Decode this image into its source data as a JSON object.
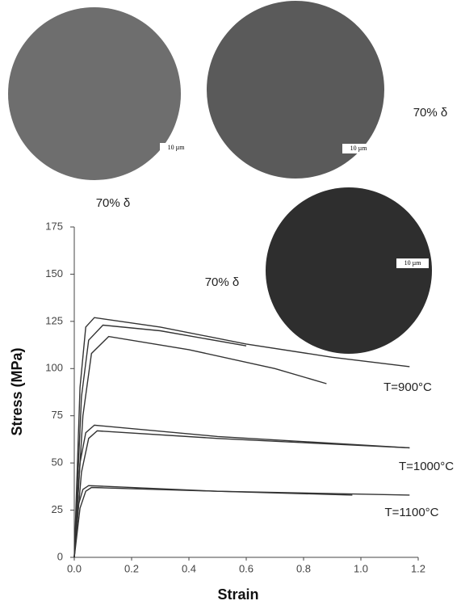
{
  "chart_data": {
    "type": "line",
    "x_label": "Strain",
    "y_label": "Stress (MPa)",
    "xlim": [
      0,
      1.2
    ],
    "ylim": [
      0,
      175
    ],
    "xticks": [
      {
        "value": 0,
        "label": "0.0"
      },
      0.2,
      0.4,
      0.6,
      0.8,
      {
        "value": 1,
        "label": "1.0"
      },
      1.2
    ],
    "yticks": [
      0,
      25,
      50,
      75,
      100,
      125,
      150,
      175
    ],
    "series": [
      {
        "color": "#333333",
        "x": [
          0,
          0.02,
          0.04,
          0.07,
          0.3,
          0.6,
          0.9,
          1.17
        ],
        "values": [
          0,
          90,
          122,
          127,
          122,
          113,
          106,
          101
        ]
      },
      {
        "color": "#333333",
        "x": [
          0,
          0.025,
          0.05,
          0.1,
          0.3,
          0.6
        ],
        "values": [
          0,
          85,
          115,
          123,
          120,
          112
        ]
      },
      {
        "color": "#333333",
        "x": [
          0,
          0.03,
          0.06,
          0.12,
          0.4,
          0.7,
          0.88
        ],
        "values": [
          0,
          75,
          108,
          117,
          110,
          100,
          92
        ]
      },
      {
        "color": "#333333",
        "x": [
          0,
          0.02,
          0.04,
          0.07,
          0.5,
          1.17
        ],
        "values": [
          0,
          50,
          66,
          70,
          64,
          58
        ]
      },
      {
        "color": "#333333",
        "x": [
          0,
          0.025,
          0.05,
          0.08,
          0.5,
          1.17
        ],
        "values": [
          0,
          45,
          63,
          67,
          63,
          58
        ]
      },
      {
        "color": "#333333",
        "x": [
          0,
          0.015,
          0.03,
          0.05,
          0.5,
          1.17
        ],
        "values": [
          0,
          28,
          36,
          38,
          35,
          33
        ]
      },
      {
        "color": "#333333",
        "x": [
          0,
          0.02,
          0.04,
          0.06,
          0.5,
          0.97
        ],
        "values": [
          0,
          26,
          35,
          37,
          35,
          33
        ]
      }
    ],
    "annotations": [
      "T=900°C",
      "T=1000°C",
      "T=1100°C"
    ]
  },
  "micrographs": [
    {
      "label": "70% δ",
      "scale": "10 µm"
    },
    {
      "label": "70% δ",
      "scale": "10 µm"
    },
    {
      "label": "70% δ",
      "scale": "10 µm"
    }
  ]
}
